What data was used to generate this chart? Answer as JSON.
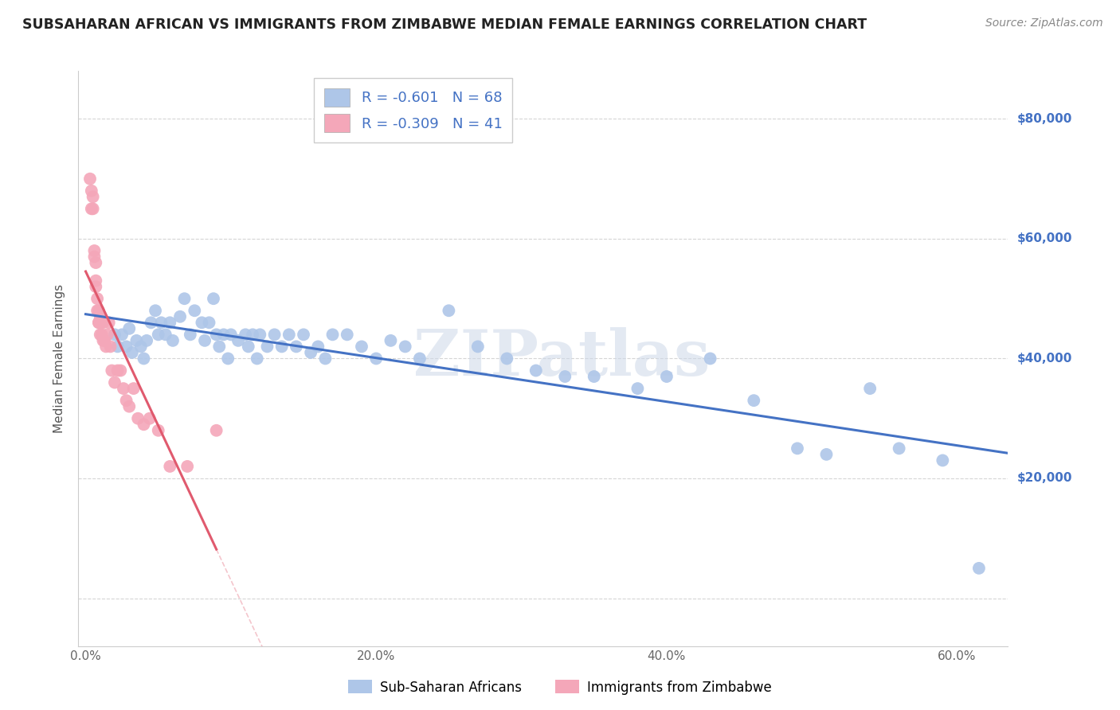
{
  "title": "SUBSAHARAN AFRICAN VS IMMIGRANTS FROM ZIMBABWE MEDIAN FEMALE EARNINGS CORRELATION CHART",
  "source": "Source: ZipAtlas.com",
  "ylabel": "Median Female Earnings",
  "legend_label1": "Sub-Saharan Africans",
  "legend_label2": "Immigrants from Zimbabwe",
  "blue_color": "#aec6e8",
  "blue_line_color": "#4472c4",
  "pink_color": "#f4a7b9",
  "pink_line_color": "#e05a6e",
  "blue_r": -0.601,
  "blue_n": 68,
  "pink_r": -0.309,
  "pink_n": 41,
  "xlim": [
    -0.005,
    0.635
  ],
  "ylim": [
    -8000,
    88000
  ],
  "xlabel_tick_vals": [
    0.0,
    0.2,
    0.4,
    0.6
  ],
  "xlabel_ticks": [
    "0.0%",
    "20.0%",
    "40.0%",
    "60.0%"
  ],
  "ylabel_tick_vals": [
    0,
    20000,
    40000,
    60000,
    80000
  ],
  "ylabel_ticks": [
    "$0",
    "$20,000",
    "$40,000",
    "$60,000",
    "$80,000"
  ],
  "blue_x": [
    0.02,
    0.022,
    0.025,
    0.028,
    0.03,
    0.032,
    0.035,
    0.038,
    0.04,
    0.042,
    0.045,
    0.048,
    0.05,
    0.052,
    0.055,
    0.058,
    0.06,
    0.065,
    0.068,
    0.072,
    0.075,
    0.08,
    0.082,
    0.085,
    0.088,
    0.09,
    0.092,
    0.095,
    0.098,
    0.1,
    0.105,
    0.11,
    0.112,
    0.115,
    0.118,
    0.12,
    0.125,
    0.13,
    0.135,
    0.14,
    0.145,
    0.15,
    0.155,
    0.16,
    0.165,
    0.17,
    0.18,
    0.19,
    0.2,
    0.21,
    0.22,
    0.23,
    0.25,
    0.27,
    0.29,
    0.31,
    0.33,
    0.35,
    0.38,
    0.4,
    0.43,
    0.46,
    0.49,
    0.51,
    0.54,
    0.56,
    0.59,
    0.615
  ],
  "blue_y": [
    44000,
    42000,
    44000,
    42000,
    45000,
    41000,
    43000,
    42000,
    40000,
    43000,
    46000,
    48000,
    44000,
    46000,
    44000,
    46000,
    43000,
    47000,
    50000,
    44000,
    48000,
    46000,
    43000,
    46000,
    50000,
    44000,
    42000,
    44000,
    40000,
    44000,
    43000,
    44000,
    42000,
    44000,
    40000,
    44000,
    42000,
    44000,
    42000,
    44000,
    42000,
    44000,
    41000,
    42000,
    40000,
    44000,
    44000,
    42000,
    40000,
    43000,
    42000,
    40000,
    48000,
    42000,
    40000,
    38000,
    37000,
    37000,
    35000,
    37000,
    40000,
    33000,
    25000,
    24000,
    35000,
    25000,
    23000,
    5000
  ],
  "pink_x": [
    0.003,
    0.004,
    0.004,
    0.005,
    0.005,
    0.006,
    0.006,
    0.007,
    0.007,
    0.007,
    0.008,
    0.008,
    0.009,
    0.009,
    0.009,
    0.01,
    0.01,
    0.011,
    0.011,
    0.012,
    0.012,
    0.013,
    0.014,
    0.015,
    0.016,
    0.017,
    0.018,
    0.02,
    0.022,
    0.024,
    0.026,
    0.028,
    0.03,
    0.033,
    0.036,
    0.04,
    0.044,
    0.05,
    0.058,
    0.07,
    0.09
  ],
  "pink_y": [
    70000,
    68000,
    65000,
    67000,
    65000,
    57000,
    58000,
    52000,
    53000,
    56000,
    48000,
    50000,
    46000,
    48000,
    46000,
    44000,
    47000,
    44000,
    46000,
    43000,
    46000,
    43000,
    42000,
    44000,
    46000,
    42000,
    38000,
    36000,
    38000,
    38000,
    35000,
    33000,
    32000,
    35000,
    30000,
    29000,
    30000,
    28000,
    22000,
    22000,
    28000
  ],
  "watermark_text": "ZIPatlas",
  "bg_color": "#ffffff",
  "grid_color": "#d5d5d5",
  "title_color": "#222222",
  "right_label_color": "#4472c4",
  "title_fontsize": 12.5,
  "source_fontsize": 10,
  "axis_tick_fontsize": 11,
  "ylabel_fontsize": 11
}
